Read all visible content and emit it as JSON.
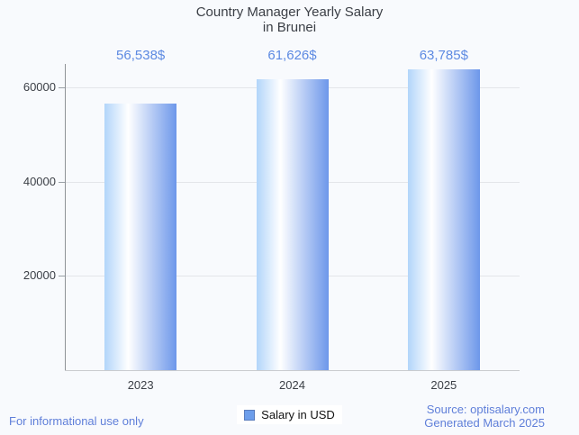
{
  "title": {
    "line1": "Country Manager Yearly Salary",
    "line2": "in Brunei"
  },
  "chart_data": {
    "type": "bar",
    "categories": [
      "2023",
      "2024",
      "2025"
    ],
    "series": [
      {
        "name": "Salary in USD",
        "values": [
          56538,
          61626,
          63785
        ]
      }
    ],
    "value_labels": [
      "56,538$",
      "61,626$",
      "63,785$"
    ],
    "title": "Country Manager Yearly Salary in Brunei",
    "xlabel": "",
    "ylabel": "",
    "y_ticks": [
      20000,
      40000,
      60000
    ],
    "y_tick_labels": [
      "20000",
      "40000",
      "60000"
    ],
    "ylim": [
      0,
      65000
    ],
    "grid": true,
    "legend_position": "bottom"
  },
  "legend": {
    "label": "Salary in USD"
  },
  "footer": {
    "left": "For informational use only",
    "source_line": "Source: optisalary.com",
    "generated_line": "Generated March 2025"
  },
  "colors": {
    "background": "#f8fafd",
    "bar_gradient_left": "#b2d5fa",
    "bar_gradient_highlight": "#ffffff",
    "bar_gradient_right": "#6d97ea",
    "value_label_text": "#5d8ae2",
    "footer_text": "#5f7fd9",
    "legend_swatch_fill": "#6d9eeb",
    "legend_swatch_border": "#5a7dbd",
    "title_text": "#3b3f46",
    "axis_line": "#8f9398",
    "gridline": "#e3e5e9"
  }
}
